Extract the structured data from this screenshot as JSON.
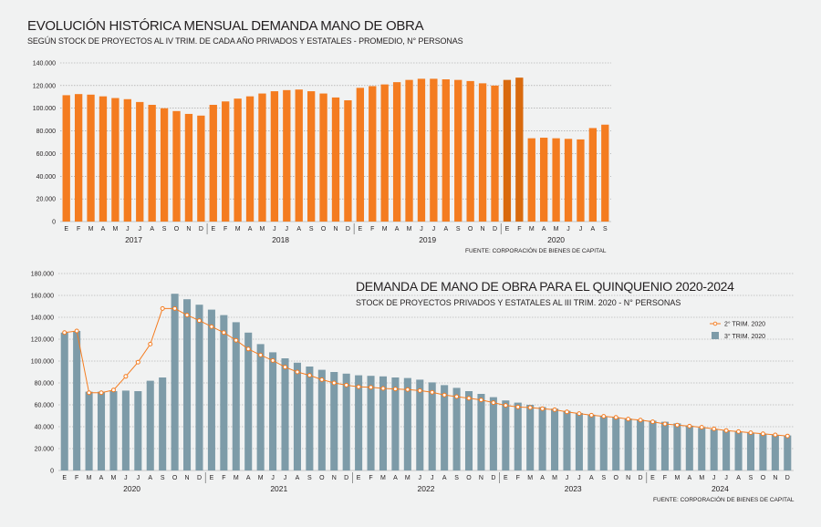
{
  "chart1": {
    "title": "EVOLUCIÓN HISTÓRICA MENSUAL DEMANDA MANO DE OBRA",
    "subtitle": "SEGÚN STOCK DE PROYECTOS AL IV TRIM. DE CADA AÑO PRIVADOS Y ESTATALES - PROMEDIO, N° PERSONAS",
    "source": "FUENTE: CORPORACIÓN DE BIENES DE CAPITAL"
  },
  "chart2": {
    "title": "DEMANDA DE MANO DE OBRA PARA EL QUINQUENIO 2020-2024",
    "subtitle": "STOCK DE PROYECTOS PRIVADOS Y ESTATALES AL III TRIM. 2020 - N° PERSONAS",
    "source": "FUENTE: CORPORACIÓN DE BIENES DE CAPITAL"
  },
  "colors": {
    "bar_orange": "#f47c20",
    "bar_dark_orange": "#d96a0e",
    "bar_blue": "#7d9ba8",
    "line_orange": "#f47c20",
    "grid": "#9a9a9a"
  },
  "chart_data": [
    {
      "type": "bar",
      "ylim": [
        0,
        140000
      ],
      "yticks": [
        "0",
        "20.000",
        "40.000",
        "60.000",
        "80.000",
        "100.000",
        "120.000",
        "140.000"
      ],
      "months": [
        "E",
        "F",
        "M",
        "A",
        "M",
        "J",
        "J",
        "A",
        "S",
        "O",
        "N",
        "D",
        "E",
        "F",
        "M",
        "A",
        "M",
        "J",
        "J",
        "A",
        "S",
        "O",
        "N",
        "D",
        "E",
        "F",
        "M",
        "A",
        "M",
        "J",
        "J",
        "A",
        "S",
        "O",
        "N",
        "D",
        "E",
        "F",
        "M",
        "A",
        "M",
        "J",
        "J",
        "A",
        "S"
      ],
      "years": [
        {
          "label": "2017",
          "start": 0,
          "end": 11
        },
        {
          "label": "2018",
          "start": 12,
          "end": 23
        },
        {
          "label": "2019",
          "start": 24,
          "end": 35
        },
        {
          "label": "2020",
          "start": 36,
          "end": 44
        }
      ],
      "values": [
        111500,
        112500,
        112000,
        110500,
        109000,
        108000,
        105500,
        103000,
        100000,
        97500,
        95000,
        93500,
        103000,
        106000,
        108500,
        110500,
        113000,
        115000,
        116000,
        116500,
        115000,
        113000,
        109500,
        107000,
        118000,
        119500,
        121000,
        123000,
        125000,
        126000,
        126000,
        125500,
        125000,
        124000,
        122000,
        120000,
        125000,
        127000,
        73500,
        74000,
        73500,
        73000,
        72500,
        82500,
        85500
      ],
      "highlight_indices": [
        36,
        37
      ]
    },
    {
      "type": "bar+line",
      "ylim": [
        0,
        180000
      ],
      "yticks": [
        "0",
        "20.000",
        "40.000",
        "60.000",
        "80.000",
        "100.000",
        "120.000",
        "140.000",
        "160.000",
        "180.000"
      ],
      "months": [
        "E",
        "F",
        "M",
        "A",
        "M",
        "J",
        "J",
        "A",
        "S",
        "O",
        "N",
        "D",
        "E",
        "F",
        "M",
        "A",
        "M",
        "J",
        "J",
        "A",
        "S",
        "O",
        "N",
        "D",
        "E",
        "F",
        "M",
        "A",
        "M",
        "J",
        "J",
        "A",
        "S",
        "O",
        "N",
        "D",
        "E",
        "F",
        "M",
        "A",
        "M",
        "J",
        "J",
        "A",
        "S",
        "O",
        "N",
        "D",
        "E",
        "F",
        "M",
        "A",
        "M",
        "J",
        "J",
        "A",
        "S",
        "O",
        "N",
        "D"
      ],
      "years": [
        {
          "label": "2020",
          "start": 0,
          "end": 11
        },
        {
          "label": "2021",
          "start": 12,
          "end": 23
        },
        {
          "label": "2022",
          "start": 24,
          "end": 35
        },
        {
          "label": "2023",
          "start": 36,
          "end": 47
        },
        {
          "label": "2024",
          "start": 48,
          "end": 59
        }
      ],
      "legend_position": "right",
      "series": [
        {
          "name": "2° TRIM. 2020",
          "kind": "line",
          "values": [
            126000,
            127500,
            71000,
            71000,
            73500,
            86000,
            99000,
            115500,
            148000,
            148000,
            142000,
            137000,
            131500,
            126000,
            119000,
            111000,
            105500,
            100500,
            94500,
            90000,
            87000,
            83000,
            80000,
            78000,
            76500,
            76000,
            75000,
            74500,
            74000,
            73000,
            71500,
            69000,
            67500,
            66000,
            64500,
            62000,
            59500,
            58000,
            57500,
            56500,
            55500,
            53500,
            52000,
            50500,
            49500,
            48500,
            47000,
            46000,
            44500,
            42500,
            41500,
            40500,
            39500,
            38000,
            36500,
            35500,
            34500,
            33500,
            32500,
            31500
          ]
        },
        {
          "name": "3° TRIM. 2020",
          "kind": "bar",
          "values": [
            126000,
            127500,
            72000,
            72000,
            72500,
            73000,
            72500,
            82000,
            85000,
            161500,
            156500,
            151500,
            147000,
            142000,
            135500,
            126000,
            115500,
            108000,
            102500,
            98500,
            95000,
            92000,
            90000,
            88500,
            87000,
            86500,
            86000,
            85000,
            84500,
            83000,
            80500,
            78000,
            75500,
            72500,
            70000,
            67000,
            64000,
            62000,
            60000,
            58000,
            56500,
            54500,
            52500,
            51000,
            49500,
            48500,
            47500,
            46500,
            45500,
            44500,
            43000,
            41000,
            39000,
            37500,
            36500,
            35500,
            34500,
            33500,
            32500,
            32000
          ]
        }
      ]
    }
  ]
}
